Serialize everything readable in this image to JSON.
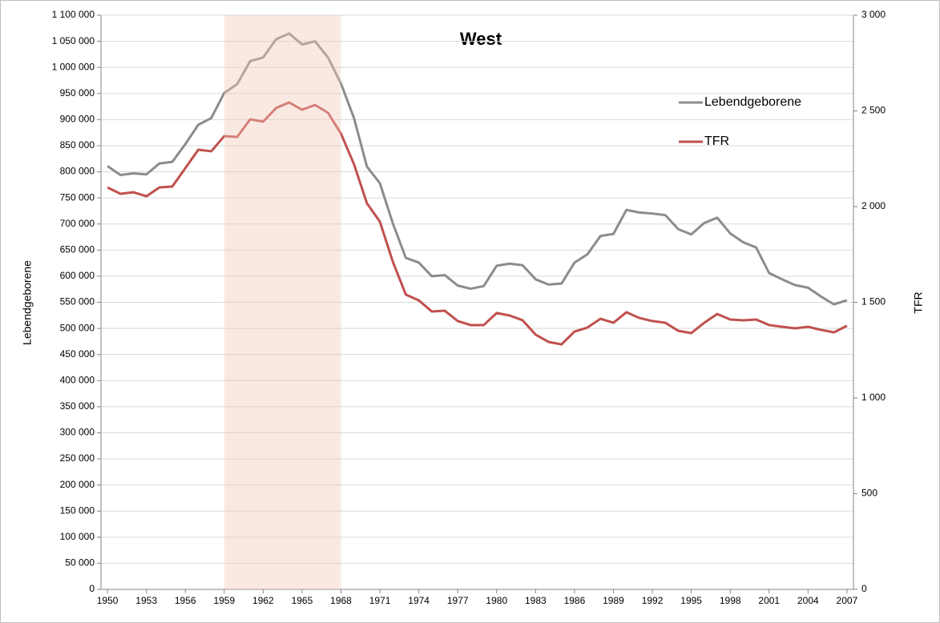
{
  "chart_data": {
    "type": "line",
    "title": "West",
    "ylabel": "Lebendgeborene",
    "y2label": "TFR",
    "x": [
      1950,
      1951,
      1952,
      1953,
      1954,
      1955,
      1956,
      1957,
      1958,
      1959,
      1960,
      1961,
      1962,
      1963,
      1964,
      1965,
      1966,
      1967,
      1968,
      1969,
      1970,
      1971,
      1972,
      1973,
      1974,
      1975,
      1976,
      1977,
      1978,
      1979,
      1980,
      1981,
      1982,
      1983,
      1984,
      1985,
      1986,
      1987,
      1988,
      1989,
      1990,
      1991,
      1992,
      1993,
      1994,
      1995,
      1996,
      1997,
      1998,
      1999,
      2000,
      2001,
      2002,
      2003,
      2004,
      2005,
      2006,
      2007
    ],
    "xticks": [
      1950,
      1953,
      1956,
      1959,
      1962,
      1965,
      1968,
      1971,
      1974,
      1977,
      1980,
      1983,
      1986,
      1989,
      1992,
      1995,
      1998,
      2001,
      2004,
      2007
    ],
    "highlight": [
      1959,
      1968
    ],
    "highlight_color": "#f2c9b8",
    "series": [
      {
        "name": "Lebendgeborene",
        "color": "#8c8c8c",
        "axis": "y",
        "values": [
          811000,
          794000,
          797000,
          795000,
          816000,
          819000,
          853000,
          890000,
          903000,
          951000,
          968000,
          1012000,
          1019000,
          1054000,
          1065000,
          1044000,
          1050000,
          1019000,
          969000,
          903000,
          810000,
          778000,
          701000,
          635000,
          626000,
          600000,
          602000,
          582000,
          576000,
          581000,
          620000,
          624000,
          621000,
          594000,
          584000,
          586000,
          626000,
          642000,
          677000,
          681000,
          727000,
          722000,
          720000,
          717000,
          690000,
          680000,
          702000,
          712000,
          682000,
          665000,
          655000,
          606000,
          594000,
          583000,
          578000,
          561000,
          546000,
          554000
        ]
      },
      {
        "name": "TFR",
        "color": "#c0504d",
        "axis": "y2",
        "values": [
          2100,
          2067,
          2075,
          2054,
          2100,
          2105,
          2201,
          2297,
          2289,
          2368,
          2364,
          2456,
          2444,
          2515,
          2544,
          2506,
          2531,
          2490,
          2381,
          2222,
          2017,
          1921,
          1711,
          1540,
          1510,
          1452,
          1456,
          1402,
          1381,
          1381,
          1444,
          1431,
          1406,
          1331,
          1293,
          1280,
          1347,
          1368,
          1414,
          1393,
          1448,
          1418,
          1402,
          1393,
          1351,
          1339,
          1393,
          1439,
          1410,
          1406,
          1410,
          1381,
          1372,
          1364,
          1372,
          1356,
          1343,
          1377
        ]
      }
    ],
    "ylim": [
      0,
      1100000
    ],
    "yticks": [
      0,
      {
        "value": 50000,
        "label": "50 000"
      },
      {
        "value": 100000,
        "label": "100 000"
      },
      {
        "value": 150000,
        "label": "150 000"
      },
      {
        "value": 200000,
        "label": "200 000"
      },
      {
        "value": 250000,
        "label": "250 000"
      },
      {
        "value": 300000,
        "label": "300 000"
      },
      {
        "value": 350000,
        "label": "350 000"
      },
      {
        "value": 400000,
        "label": "400 000"
      },
      {
        "value": 450000,
        "label": "450 000"
      },
      {
        "value": 500000,
        "label": "500 000"
      },
      {
        "value": 550000,
        "label": "550 000"
      },
      {
        "value": 600000,
        "label": "600 000"
      },
      {
        "value": 650000,
        "label": "650 000"
      },
      {
        "value": 700000,
        "label": "700 000"
      },
      {
        "value": 750000,
        "label": "750 000"
      },
      {
        "value": 800000,
        "label": "800 000"
      },
      {
        "value": 850000,
        "label": "850 000"
      },
      {
        "value": 900000,
        "label": "900 000"
      },
      {
        "value": 950000,
        "label": "950 000"
      },
      {
        "value": 1000000,
        "label": "1 000 000"
      },
      {
        "value": 1050000,
        "label": "1 050 000"
      },
      {
        "value": 1100000,
        "label": "1 100 000"
      }
    ],
    "y2lim": [
      0,
      3000
    ],
    "y2ticks": [
      0,
      500,
      {
        "value": 1000,
        "label": "1 000"
      },
      {
        "value": 1500,
        "label": "1 500"
      },
      {
        "value": 2000,
        "label": "2 000"
      },
      {
        "value": 2500,
        "label": "2 500"
      },
      {
        "value": 3000,
        "label": "3 000"
      }
    ],
    "grid": true,
    "legend": "upper right"
  }
}
